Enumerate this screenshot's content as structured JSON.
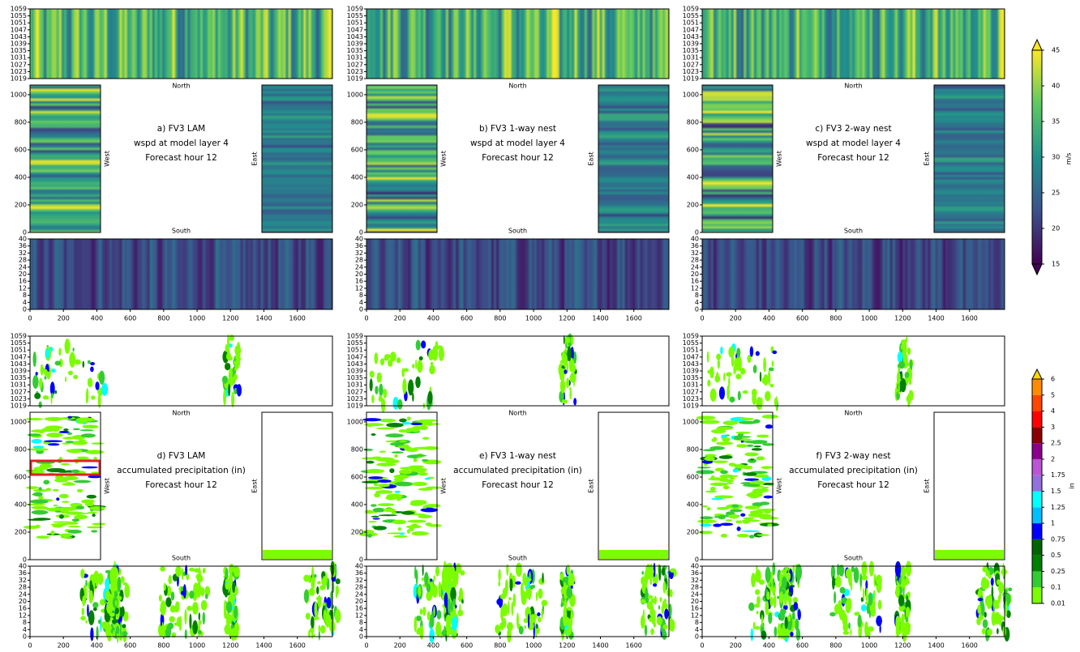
{
  "panels": [
    {
      "lines": [
        "a) FV3 LAM",
        "wspd at model layer 4",
        "Forecast hour 12"
      ]
    },
    {
      "lines": [
        "b) FV3 1-way nest",
        "wspd at model layer 4",
        "Forecast hour 12"
      ]
    },
    {
      "lines": [
        "c) FV3 2-way nest",
        "wspd at model layer 4",
        "Forecast hour 12"
      ]
    },
    {
      "lines": [
        "d) FV3 LAM",
        "accumulated precipitation (in)",
        "Forecast hour 12"
      ]
    },
    {
      "lines": [
        "e) FV3 1-way nest",
        "accumulated precipitation (in)",
        "Forecast hour 12"
      ]
    },
    {
      "lines": [
        "f) FV3 2-way nest",
        "accumulated precipitation (in)",
        "Forecast hour 12"
      ]
    }
  ],
  "side_labels": {
    "north": "North",
    "south": "South",
    "west": "West",
    "east": "East"
  },
  "north_ylim": [
    1019,
    1059
  ],
  "north_yticks": [
    1019,
    1023,
    1027,
    1031,
    1035,
    1039,
    1043,
    1047,
    1051,
    1055,
    1059
  ],
  "middle_ylim": [
    0,
    1070
  ],
  "middle_yticks": [
    0,
    200,
    400,
    600,
    800,
    1000
  ],
  "south_ylim": [
    0,
    40
  ],
  "south_yticks": [
    0,
    4,
    8,
    12,
    16,
    20,
    24,
    28,
    32,
    36,
    40
  ],
  "xlim": [
    0,
    1810
  ],
  "xticks": [
    0,
    200,
    400,
    600,
    800,
    1000,
    1200,
    1400,
    1600
  ],
  "colorbars": [
    {
      "unit": "m/s",
      "lim": [
        15,
        45
      ],
      "ticks": [
        15,
        20,
        25,
        30,
        35,
        40,
        45
      ],
      "colors": [
        "#440154",
        "#3b528b",
        "#21918c",
        "#5ec962",
        "#fde725"
      ]
    },
    {
      "unit": "in",
      "ticks": [
        0.01,
        0.1,
        0.25,
        0.5,
        0.75,
        1,
        1.25,
        1.5,
        1.75,
        2,
        2.5,
        3,
        4,
        5,
        6
      ],
      "colors": [
        "#7cfc00",
        "#32cd32",
        "#008000",
        "#006400",
        "#0000ff",
        "#00bfff",
        "#00ffff",
        "#9370db",
        "#ba55d3",
        "#8b008b",
        "#8b0000",
        "#ff0000",
        "#ff4500",
        "#ff8c00",
        "#ffd700"
      ]
    }
  ]
}
